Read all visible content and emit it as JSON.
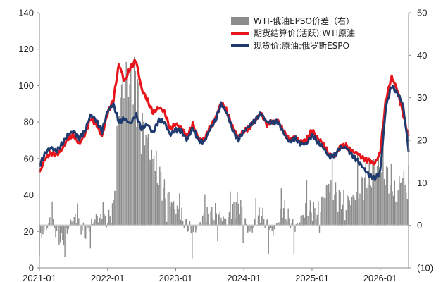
{
  "chart_data": {
    "type": "line",
    "title": "",
    "xlabel": "",
    "ylabel": "",
    "x_ticks": [
      "2021-01",
      "2022-01",
      "2023-01",
      "2024-01",
      "2025-01",
      "2026-01"
    ],
    "x_range": [
      "2021-01",
      "2026-06"
    ],
    "y_left": {
      "range": [
        0,
        140
      ],
      "ticks": [
        "0",
        "20",
        "40",
        "60",
        "80",
        "100",
        "120",
        "140"
      ]
    },
    "y_right": {
      "range": [
        -10,
        50
      ],
      "ticks": [
        {
          "value": -10,
          "label": "(10)",
          "color": "#e00000"
        },
        {
          "value": 0,
          "label": "0",
          "color": "#222222"
        },
        {
          "value": 10,
          "label": "10",
          "color": "#222222"
        },
        {
          "value": 20,
          "label": "20",
          "color": "#222222"
        },
        {
          "value": 30,
          "label": "30",
          "color": "#222222"
        },
        {
          "value": 40,
          "label": "40",
          "color": "#222222"
        },
        {
          "value": 50,
          "label": "50",
          "color": "#222222"
        }
      ]
    },
    "grid": false,
    "legend_position": "top-center",
    "series": [
      {
        "name": "WTI-俄油EPSO价差（右）",
        "type": "bar",
        "axis": "right",
        "color": "#8c8c8c",
        "points": [
          [
            "2021-01",
            -3
          ],
          [
            "2021-03",
            1
          ],
          [
            "2021-05",
            -4
          ],
          [
            "2021-07",
            2
          ],
          [
            "2021-09",
            -2
          ],
          [
            "2021-11",
            2
          ],
          [
            "2022-01",
            1
          ],
          [
            "2022-02",
            4
          ],
          [
            "2022-03",
            28
          ],
          [
            "2022-04",
            36
          ],
          [
            "2022-05",
            30
          ],
          [
            "2022-06",
            34
          ],
          [
            "2022-07",
            24
          ],
          [
            "2022-08",
            20
          ],
          [
            "2022-09",
            14
          ],
          [
            "2022-10",
            12
          ],
          [
            "2022-11",
            8
          ],
          [
            "2022-12",
            6
          ],
          [
            "2023-02",
            2
          ],
          [
            "2023-04",
            -2
          ],
          [
            "2023-06",
            2
          ],
          [
            "2023-08",
            3
          ],
          [
            "2023-10",
            1
          ],
          [
            "2023-12",
            6
          ],
          [
            "2024-02",
            -2
          ],
          [
            "2024-04",
            3
          ],
          [
            "2024-06",
            -2
          ],
          [
            "2024-08",
            4
          ],
          [
            "2024-10",
            -1
          ],
          [
            "2024-12",
            4
          ],
          [
            "2025-02",
            3
          ],
          [
            "2025-04",
            10
          ],
          [
            "2025-06",
            6
          ],
          [
            "2025-08",
            6
          ],
          [
            "2025-10",
            10
          ],
          [
            "2025-12",
            14
          ],
          [
            "2026-01",
            14
          ],
          [
            "2026-02",
            12
          ],
          [
            "2026-03",
            10
          ],
          [
            "2026-04",
            8
          ],
          [
            "2026-05",
            12
          ],
          [
            "2026-06",
            6
          ]
        ]
      },
      {
        "name": "期货结算价(活跃):WTI原油",
        "type": "line",
        "axis": "left",
        "color": "#e8141b",
        "points": [
          [
            "2021-01",
            52
          ],
          [
            "2021-02",
            60
          ],
          [
            "2021-03",
            63
          ],
          [
            "2021-04",
            62
          ],
          [
            "2021-05",
            65
          ],
          [
            "2021-06",
            71
          ],
          [
            "2021-07",
            73
          ],
          [
            "2021-08",
            68
          ],
          [
            "2021-09",
            73
          ],
          [
            "2021-10",
            82
          ],
          [
            "2021-11",
            79
          ],
          [
            "2021-12",
            72
          ],
          [
            "2022-01",
            85
          ],
          [
            "2022-02",
            92
          ],
          [
            "2022-03",
            112
          ],
          [
            "2022-04",
            102
          ],
          [
            "2022-05",
            110
          ],
          [
            "2022-06",
            114
          ],
          [
            "2022-07",
            98
          ],
          [
            "2022-08",
            92
          ],
          [
            "2022-09",
            85
          ],
          [
            "2022-10",
            88
          ],
          [
            "2022-11",
            86
          ],
          [
            "2022-12",
            76
          ],
          [
            "2023-01",
            79
          ],
          [
            "2023-02",
            77
          ],
          [
            "2023-03",
            72
          ],
          [
            "2023-04",
            79
          ],
          [
            "2023-05",
            71
          ],
          [
            "2023-06",
            70
          ],
          [
            "2023-07",
            77
          ],
          [
            "2023-08",
            82
          ],
          [
            "2023-09",
            91
          ],
          [
            "2023-10",
            86
          ],
          [
            "2023-11",
            77
          ],
          [
            "2023-12",
            72
          ],
          [
            "2024-01",
            75
          ],
          [
            "2024-02",
            77
          ],
          [
            "2024-03",
            81
          ],
          [
            "2024-04",
            85
          ],
          [
            "2024-05",
            79
          ],
          [
            "2024-06",
            80
          ],
          [
            "2024-07",
            81
          ],
          [
            "2024-08",
            75
          ],
          [
            "2024-09",
            70
          ],
          [
            "2024-10",
            72
          ],
          [
            "2024-11",
            69
          ],
          [
            "2024-12",
            70
          ],
          [
            "2025-01",
            76
          ],
          [
            "2025-02",
            71
          ],
          [
            "2025-03",
            68
          ],
          [
            "2025-04",
            62
          ],
          [
            "2025-05",
            61
          ],
          [
            "2025-06",
            67
          ],
          [
            "2025-07",
            67
          ],
          [
            "2025-08",
            64
          ],
          [
            "2025-09",
            63
          ],
          [
            "2025-10",
            60
          ],
          [
            "2025-11",
            59
          ],
          [
            "2025-12",
            57
          ],
          [
            "2026-01",
            63
          ],
          [
            "2026-02",
            92
          ],
          [
            "2026-03",
            105
          ],
          [
            "2026-04",
            98
          ],
          [
            "2026-05",
            85
          ],
          [
            "2026-06",
            72
          ]
        ]
      },
      {
        "name": "现货价:原油:俄罗斯ESPO",
        "type": "line",
        "axis": "left",
        "color": "#1f3a6e",
        "points": [
          [
            "2021-01",
            56
          ],
          [
            "2021-02",
            63
          ],
          [
            "2021-03",
            66
          ],
          [
            "2021-04",
            64
          ],
          [
            "2021-05",
            68
          ],
          [
            "2021-06",
            73
          ],
          [
            "2021-07",
            75
          ],
          [
            "2021-08",
            71
          ],
          [
            "2021-09",
            75
          ],
          [
            "2021-10",
            84
          ],
          [
            "2021-11",
            81
          ],
          [
            "2021-12",
            75
          ],
          [
            "2022-01",
            86
          ],
          [
            "2022-02",
            90
          ],
          [
            "2022-03",
            80
          ],
          [
            "2022-04",
            82
          ],
          [
            "2022-05",
            79
          ],
          [
            "2022-06",
            84
          ],
          [
            "2022-07",
            76
          ],
          [
            "2022-08",
            79
          ],
          [
            "2022-09",
            74
          ],
          [
            "2022-10",
            81
          ],
          [
            "2022-11",
            80
          ],
          [
            "2022-12",
            73
          ],
          [
            "2023-01",
            76
          ],
          [
            "2023-02",
            75
          ],
          [
            "2023-03",
            70
          ],
          [
            "2023-04",
            77
          ],
          [
            "2023-05",
            70
          ],
          [
            "2023-06",
            69
          ],
          [
            "2023-07",
            76
          ],
          [
            "2023-08",
            81
          ],
          [
            "2023-09",
            90
          ],
          [
            "2023-10",
            85
          ],
          [
            "2023-11",
            76
          ],
          [
            "2023-12",
            70
          ],
          [
            "2024-01",
            75
          ],
          [
            "2024-02",
            78
          ],
          [
            "2024-03",
            81
          ],
          [
            "2024-04",
            85
          ],
          [
            "2024-05",
            80
          ],
          [
            "2024-06",
            80
          ],
          [
            "2024-07",
            80
          ],
          [
            "2024-08",
            74
          ],
          [
            "2024-09",
            69
          ],
          [
            "2024-10",
            71
          ],
          [
            "2024-11",
            68
          ],
          [
            "2024-12",
            68
          ],
          [
            "2025-01",
            73
          ],
          [
            "2025-02",
            69
          ],
          [
            "2025-03",
            66
          ],
          [
            "2025-04",
            61
          ],
          [
            "2025-05",
            62
          ],
          [
            "2025-06",
            66
          ],
          [
            "2025-07",
            66
          ],
          [
            "2025-08",
            62
          ],
          [
            "2025-09",
            59
          ],
          [
            "2025-10",
            55
          ],
          [
            "2025-11",
            51
          ],
          [
            "2025-12",
            49
          ],
          [
            "2026-01",
            52
          ],
          [
            "2026-02",
            88
          ],
          [
            "2026-03",
            100
          ],
          [
            "2026-04",
            96
          ],
          [
            "2026-05",
            90
          ],
          [
            "2026-06",
            65
          ]
        ]
      }
    ]
  }
}
